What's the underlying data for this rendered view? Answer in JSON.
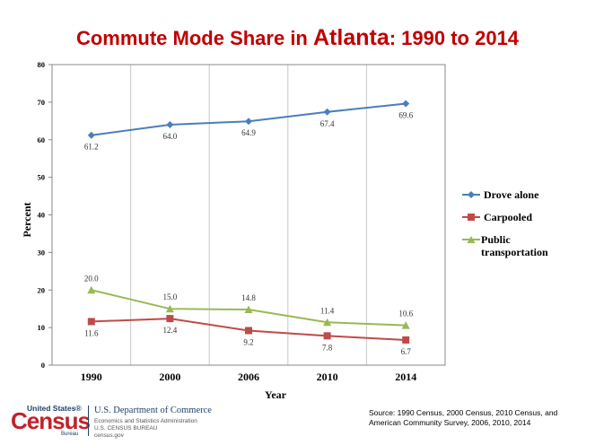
{
  "title": {
    "main": "Commute Mode Share in ",
    "city": "Atlanta",
    "rest": ": 1990 to 2014"
  },
  "chart_data": {
    "type": "line",
    "categories": [
      "1990",
      "2000",
      "2006",
      "2010",
      "2014"
    ],
    "series": [
      {
        "name": "Drove alone",
        "values": [
          61.2,
          64.0,
          64.9,
          67.4,
          69.6
        ],
        "labels": [
          "61.2",
          "64.0",
          "64.9",
          "67.4",
          "69.6"
        ],
        "color": "#4a7ebb",
        "marker": "diamond"
      },
      {
        "name": "Carpooled",
        "values": [
          11.6,
          12.4,
          9.2,
          7.8,
          6.7
        ],
        "labels": [
          "11.6",
          "12.4",
          "9.2",
          "7.8",
          "6.7"
        ],
        "color": "#be4b48",
        "marker": "square"
      },
      {
        "name": "Public transportation",
        "values": [
          20.0,
          15.0,
          14.8,
          11.4,
          10.6
        ],
        "labels": [
          "20.0",
          "15.0",
          "14.8",
          "11.4",
          "10.6"
        ],
        "color": "#98b954",
        "marker": "triangle"
      }
    ],
    "xlabel": "Year",
    "ylabel": "Percent",
    "ylim": [
      0,
      80
    ],
    "yticks": [
      0,
      10,
      20,
      30,
      40,
      50,
      60,
      70,
      80
    ],
    "grid": "vertical",
    "legend": "right"
  },
  "legend": {
    "drove_alone": "Drove alone",
    "carpooled": "Carpooled",
    "public_line1": "Public",
    "public_line2": "transportation"
  },
  "source": {
    "line1": "Source:  1990 Census, 2000 Census, 2010 Census, and",
    "line2": "American  Community Survey, 2006, 2010,  2014"
  },
  "logo": {
    "us": "United States®",
    "census": "Census",
    "bureau": "Bureau",
    "dept": "U.S. Department of Commerce",
    "line1": "Economics and Statistics Administration",
    "line2": "U.S. CENSUS BUREAU",
    "line3": "census.gov"
  }
}
